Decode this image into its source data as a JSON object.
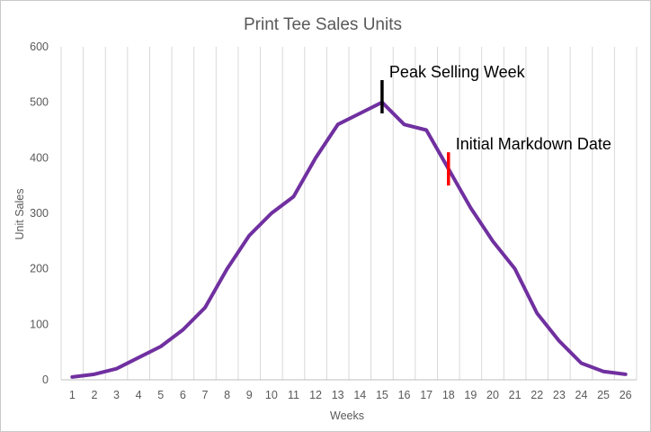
{
  "chart_data": {
    "type": "line",
    "title": "Print Tee Sales Units",
    "xlabel": "Weeks",
    "ylabel": "Unit Sales",
    "ylim": [
      0,
      600
    ],
    "yticks": [
      "0",
      "100",
      "200",
      "300",
      "400",
      "500",
      "600"
    ],
    "grid": "vertical",
    "categories": [
      "1",
      "2",
      "3",
      "4",
      "5",
      "6",
      "7",
      "8",
      "9",
      "10",
      "11",
      "12",
      "13",
      "14",
      "15",
      "16",
      "17",
      "18",
      "19",
      "20",
      "21",
      "22",
      "23",
      "24",
      "25",
      "26"
    ],
    "series": [
      {
        "values": [
          5,
          10,
          20,
          40,
          60,
          90,
          130,
          200,
          260,
          300,
          330,
          400,
          460,
          480,
          500,
          460,
          450,
          380,
          310,
          250,
          200,
          120,
          70,
          30,
          15,
          10
        ],
        "color": "#7030a0"
      }
    ],
    "annotations": [
      {
        "label": "Peak Selling Week",
        "week": 15,
        "y_from": 480,
        "y_to": 540,
        "color": "#000000"
      },
      {
        "label": "Initial Markdown Date",
        "week": 18,
        "y_from": 350,
        "y_to": 410,
        "color": "#ff0000"
      }
    ]
  }
}
